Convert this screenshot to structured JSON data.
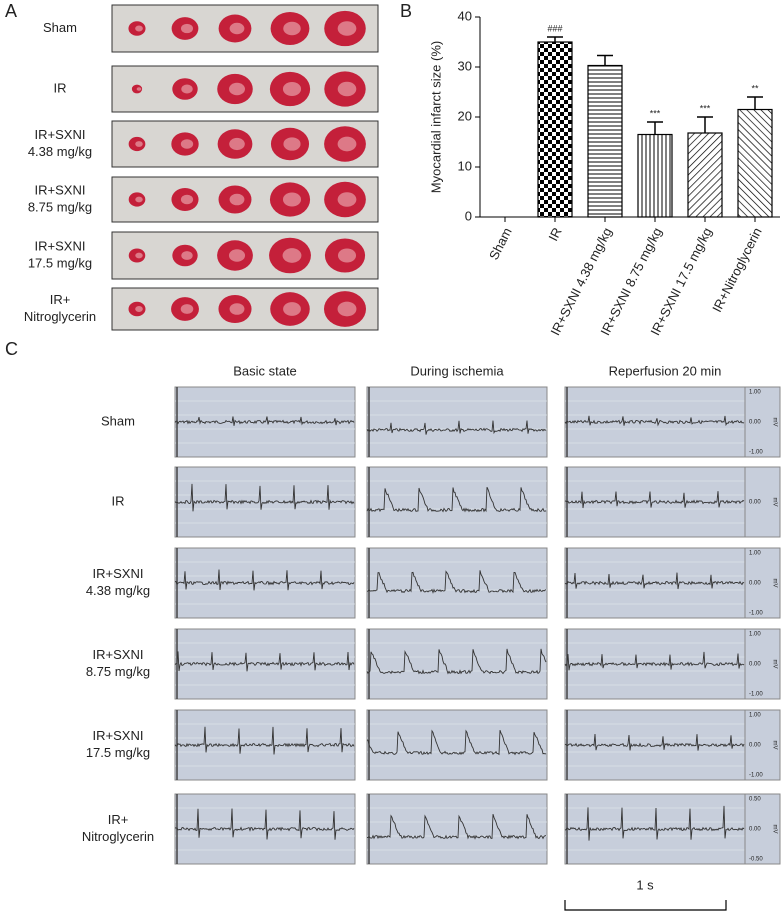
{
  "panel_a": {
    "letter": "A",
    "rows": [
      [
        "Sham"
      ],
      [
        "IR"
      ],
      [
        "IR+SXNI",
        "4.38 mg/kg"
      ],
      [
        "IR+SXNI",
        "8.75 mg/kg"
      ],
      [
        "IR+SXNI",
        "17.5 mg/kg"
      ],
      [
        "IR+",
        "Nitroglycerin"
      ]
    ]
  },
  "chart_data": {
    "type": "bar",
    "letter": "B",
    "y_label": "Myocardial infarct size (%)",
    "categories": [
      "Sham",
      "IR",
      "IR+SXNI 4.38 mg/kg",
      "IR+SXNI 8.75 mg/kg",
      "IR+SXNI 17.5 mg/kg",
      "IR+Nitroglycerin"
    ],
    "values": [
      0,
      35,
      30.3,
      16.5,
      16.8,
      21.5
    ],
    "errors": [
      0,
      1,
      2,
      2.5,
      3.2,
      2.5
    ],
    "annotations": [
      null,
      "###",
      null,
      "***",
      "***",
      "**"
    ],
    "patterns": [
      "none",
      "checker",
      "horizontal",
      "vertical",
      "diagonal-up",
      "diagonal-down"
    ],
    "color": "#000000",
    "ylim": [
      0,
      40
    ],
    "yticks": [
      0,
      10,
      20,
      30,
      40
    ]
  },
  "panel_c": {
    "letter": "C",
    "columns": [
      "Basic state",
      "During ischemia",
      "Reperfusion 20 min"
    ],
    "rows": [
      [
        "Sham"
      ],
      [
        "IR"
      ],
      [
        "IR+SXNI",
        "4.38 mg/kg"
      ],
      [
        "IR+SXNI",
        "8.75 mg/kg"
      ],
      [
        "IR+SXNI",
        "17.5 mg/kg"
      ],
      [
        "IR+",
        "Nitroglycerin"
      ]
    ],
    "scales": [
      [
        "1.00",
        "0.00",
        "-1.00"
      ],
      [
        null,
        "0.00",
        null
      ],
      [
        "1.00",
        "0.00",
        "-1.00"
      ],
      [
        "1.00",
        "0.00",
        "-1.00"
      ],
      [
        "1.00",
        "0.00",
        "-1.00"
      ],
      [
        "0.50",
        "0.00",
        "-0.50"
      ]
    ],
    "unit": "mV",
    "scale_bar": "1 s"
  }
}
